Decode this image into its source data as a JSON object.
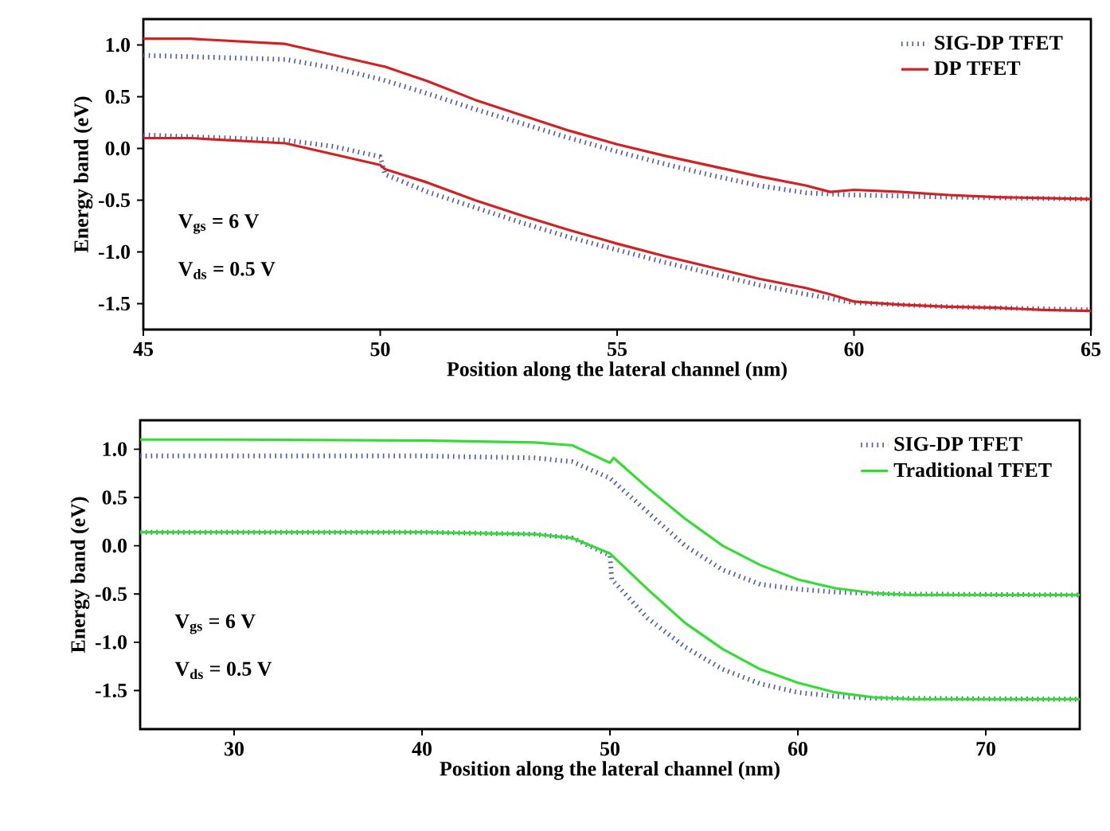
{
  "chart_data": [
    {
      "type": "line",
      "xlabel": "Position along the lateral channel (nm)",
      "ylabel": "Energy band (eV)",
      "xlim": [
        45,
        65
      ],
      "xticks": [
        45,
        50,
        55,
        60,
        65
      ],
      "ylim": [
        -1.75,
        1.25
      ],
      "yticks": [
        {
          "value": 1,
          "label": "1.0"
        },
        {
          "value": 0.5,
          "label": "0.5"
        },
        {
          "value": 0,
          "label": "0.0"
        },
        {
          "value": -0.5,
          "label": "-0.5"
        },
        {
          "value": -1,
          "label": "-1.0"
        },
        {
          "value": -1.5,
          "label": "-1.5"
        }
      ],
      "legend": "top right",
      "grid": false,
      "marker": "none",
      "annotations": [
        "V$_{gs}$ = 6 V",
        "V$_{ds}$ = 0.5 V"
      ],
      "series": [
        {
          "name": "SIG-DP TFET",
          "color": "#4a5aa8",
          "line_style": "dotted",
          "x": [
            45,
            48,
            49,
            50,
            51,
            52,
            53,
            54,
            55,
            56,
            57,
            58,
            59,
            60,
            62,
            65
          ],
          "values": [
            0.9,
            0.86,
            0.78,
            0.67,
            0.53,
            0.38,
            0.24,
            0.1,
            -0.03,
            -0.15,
            -0.26,
            -0.36,
            -0.43,
            -0.45,
            -0.47,
            -0.49
          ]
        },
        {
          "name": "DP TFET",
          "color": "#d42020",
          "line_style": "solid",
          "x": [
            45,
            46,
            48,
            50,
            50.1,
            51,
            52,
            53,
            54,
            55,
            56,
            57,
            58,
            59,
            59.5,
            60,
            61,
            62,
            63,
            64,
            65
          ],
          "values": [
            1.06,
            1.06,
            1.01,
            0.8,
            0.79,
            0.65,
            0.47,
            0.32,
            0.17,
            0.04,
            -0.07,
            -0.17,
            -0.27,
            -0.36,
            -0.42,
            -0.4,
            -0.42,
            -0.45,
            -0.47,
            -0.48,
            -0.49
          ]
        },
        {
          "color": "#4a5aa8",
          "line_style": "dotted",
          "x": [
            45,
            48,
            49,
            50,
            50.1,
            51,
            52,
            53,
            54,
            55,
            56,
            57,
            58,
            59,
            60,
            62,
            65
          ],
          "values": [
            0.13,
            0.08,
            0.02,
            -0.08,
            -0.25,
            -0.42,
            -0.57,
            -0.72,
            -0.86,
            -0.98,
            -1.1,
            -1.21,
            -1.32,
            -1.41,
            -1.49,
            -1.53,
            -1.56
          ]
        },
        {
          "color": "#d42020",
          "line_style": "solid",
          "x": [
            45,
            46,
            48,
            50,
            50.1,
            51,
            52,
            53,
            54,
            55,
            56,
            57,
            58,
            59,
            59.5,
            60,
            61,
            62,
            63,
            64,
            65
          ],
          "values": [
            0.1,
            0.1,
            0.05,
            -0.16,
            -0.2,
            -0.33,
            -0.5,
            -0.65,
            -0.79,
            -0.92,
            -1.04,
            -1.15,
            -1.26,
            -1.35,
            -1.41,
            -1.48,
            -1.51,
            -1.53,
            -1.54,
            -1.56,
            -1.57
          ]
        }
      ]
    },
    {
      "type": "line",
      "xlabel": "Position along the lateral channel (nm)",
      "ylabel": "Energy band (eV)",
      "xlim": [
        25,
        75
      ],
      "xticks": [
        30,
        40,
        50,
        60,
        70
      ],
      "ylim": [
        -1.9,
        1.3
      ],
      "yticks": [
        {
          "value": 1,
          "label": "1.0"
        },
        {
          "value": 0.5,
          "label": "0.5"
        },
        {
          "value": 0,
          "label": "0.0"
        },
        {
          "value": -0.5,
          "label": "-0.5"
        },
        {
          "value": -1,
          "label": "-1.0"
        },
        {
          "value": -1.5,
          "label": "-1.5"
        }
      ],
      "legend": "top right",
      "grid": false,
      "marker": "none",
      "annotations": [
        "V$_{gs}$ = 6 V",
        "V$_{ds}$ = 0.5 V"
      ],
      "series": [
        {
          "name": "SIG-DP TFET",
          "color": "#4a5aa8",
          "line_style": "dotted",
          "x": [
            25,
            40,
            46,
            48,
            50,
            52,
            54,
            56,
            58,
            60,
            62,
            65,
            75
          ],
          "values": [
            0.93,
            0.93,
            0.91,
            0.87,
            0.7,
            0.35,
            0.0,
            -0.25,
            -0.4,
            -0.45,
            -0.48,
            -0.5,
            -0.51
          ]
        },
        {
          "name": "Traditional TFET",
          "color": "#33dd33",
          "line_style": "solid",
          "x": [
            25,
            30,
            40,
            46,
            48,
            50,
            50.2,
            52,
            54,
            56,
            58,
            60,
            62,
            64,
            66,
            75
          ],
          "values": [
            1.1,
            1.1,
            1.09,
            1.07,
            1.04,
            0.86,
            0.91,
            0.6,
            0.28,
            0.0,
            -0.2,
            -0.35,
            -0.44,
            -0.49,
            -0.51,
            -0.51
          ]
        },
        {
          "color": "#4a5aa8",
          "line_style": "dotted",
          "x": [
            25,
            40,
            46,
            48,
            50,
            50.1,
            52,
            54,
            56,
            58,
            60,
            62,
            64,
            75
          ],
          "values": [
            0.14,
            0.14,
            0.12,
            0.08,
            -0.1,
            -0.35,
            -0.75,
            -1.05,
            -1.28,
            -1.43,
            -1.52,
            -1.56,
            -1.58,
            -1.59
          ]
        },
        {
          "color": "#33dd33",
          "line_style": "solid",
          "x": [
            25,
            40,
            46,
            48,
            50,
            52,
            54,
            56,
            58,
            60,
            62,
            64,
            66,
            75
          ],
          "values": [
            0.14,
            0.14,
            0.12,
            0.08,
            -0.08,
            -0.45,
            -0.8,
            -1.07,
            -1.28,
            -1.42,
            -1.52,
            -1.57,
            -1.59,
            -1.59
          ]
        }
      ]
    }
  ]
}
